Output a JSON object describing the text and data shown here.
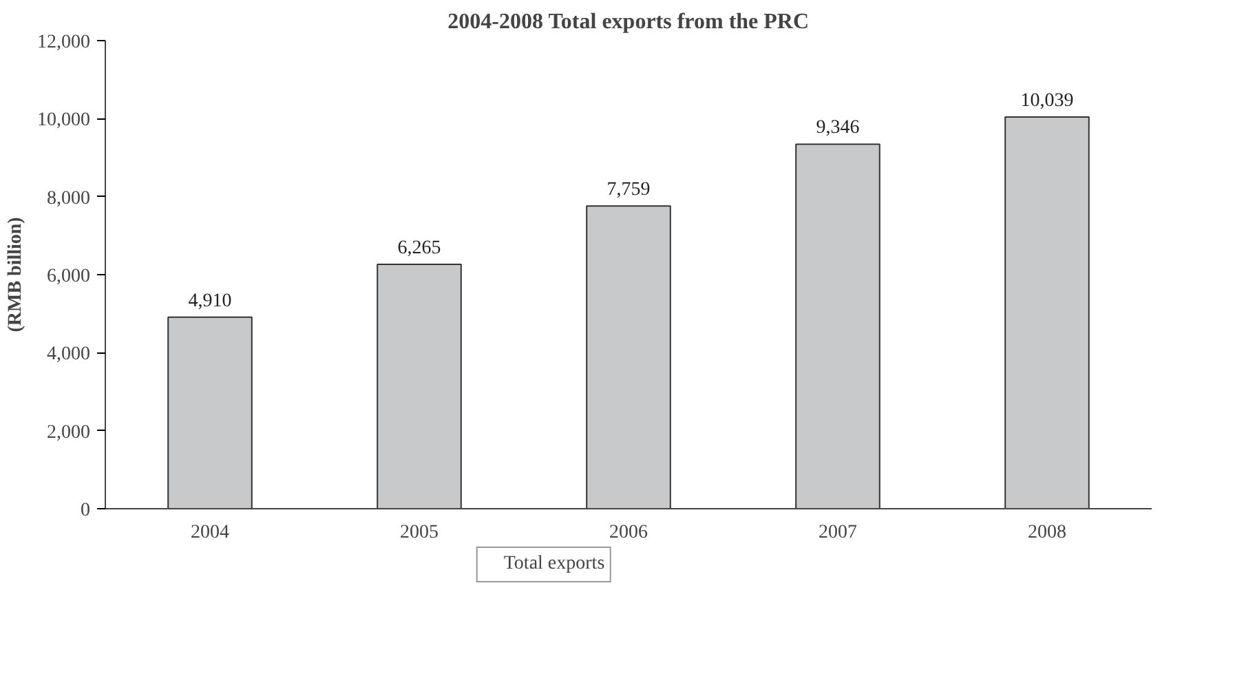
{
  "chart_data": {
    "type": "bar",
    "title": "2004-2008 Total exports from the PRC",
    "ylabel": "(RMB billion)",
    "categories": [
      "2004",
      "2005",
      "2006",
      "2007",
      "2008"
    ],
    "series": [
      {
        "name": "Total exports",
        "color": "#c8c9cb",
        "values": [
          4910,
          6265,
          7759,
          9346,
          10039
        ],
        "value_labels": [
          "4,910",
          "6,265",
          "7,759",
          "9,346",
          "10,039"
        ]
      }
    ],
    "ylim": [
      0,
      12000
    ],
    "yticks": [
      0,
      {
        "value": 2000,
        "label": "2,000"
      },
      {
        "value": 4000,
        "label": "4,000"
      },
      {
        "value": 6000,
        "label": "6,000"
      },
      {
        "value": 8000,
        "label": "8,000"
      },
      {
        "value": 10000,
        "label": "10,000"
      },
      {
        "value": 12000,
        "label": "12,000"
      }
    ],
    "legend": "bottom",
    "grid": false
  }
}
